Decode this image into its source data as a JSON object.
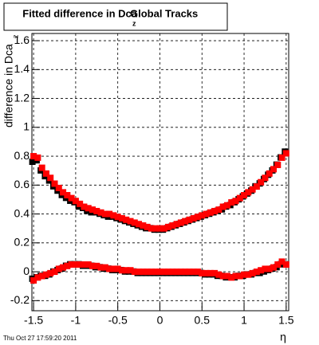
{
  "chart_data": {
    "type": "scatter",
    "title": "Fitted difference in Dca",
    "title_subscript": "z",
    "title_suffix": "Global Tracks",
    "y_label": "difference in Dca",
    "y_label_subscript": "z",
    "x_label": "η",
    "footer": "Thu Oct 27 17:59:20 2011",
    "x": [
      -1.5,
      -1.45,
      -1.4,
      -1.35,
      -1.3,
      -1.25,
      -1.2,
      -1.15,
      -1.1,
      -1.05,
      -1,
      -0.95,
      -0.9,
      -0.85,
      -0.8,
      -0.75,
      -0.7,
      -0.65,
      -0.6,
      -0.55,
      -0.5,
      -0.45,
      -0.4,
      -0.35,
      -0.3,
      -0.25,
      -0.2,
      -0.15,
      -0.1,
      -0.05,
      0,
      0.05,
      0.1,
      0.15,
      0.2,
      0.25,
      0.3,
      0.35,
      0.4,
      0.45,
      0.5,
      0.55,
      0.6,
      0.65,
      0.7,
      0.75,
      0.8,
      0.85,
      0.9,
      0.95,
      1,
      1.05,
      1.1,
      1.15,
      1.2,
      1.25,
      1.3,
      1.35,
      1.4,
      1.45,
      1.5
    ],
    "series": [
      {
        "color": "#000000",
        "values": [
          0.77,
          0.78,
          0.71,
          0.67,
          0.64,
          0.6,
          0.57,
          0.54,
          0.52,
          0.5,
          0.49,
          0.46,
          0.45,
          0.43,
          0.42,
          0.42,
          0.41,
          0.4,
          0.39,
          0.39,
          0.38,
          0.37,
          0.36,
          0.35,
          0.34,
          0.33,
          0.32,
          0.31,
          0.31,
          0.3,
          0.3,
          0.3,
          0.31,
          0.32,
          0.33,
          0.34,
          0.35,
          0.36,
          0.37,
          0.38,
          0.39,
          0.4,
          0.41,
          0.42,
          0.43,
          0.44,
          0.46,
          0.47,
          0.49,
          0.51,
          0.53,
          0.55,
          0.57,
          0.6,
          0.62,
          0.65,
          0.68,
          0.71,
          0.75,
          0.8,
          0.84
        ]
      },
      {
        "color": "#000000",
        "values": [
          -0.04,
          -0.03,
          -0.02,
          -0.02,
          -0.01,
          0.01,
          0.02,
          0.03,
          0.05,
          0.06,
          0.06,
          0.06,
          0.05,
          0.05,
          0.05,
          0.04,
          0.04,
          0.03,
          0.03,
          0.02,
          0.02,
          0.02,
          0.01,
          0.01,
          0.01,
          0,
          0,
          0,
          0,
          0,
          0,
          0,
          0,
          0,
          0,
          0,
          0,
          0,
          0,
          0,
          0,
          -0.01,
          -0.01,
          -0.01,
          -0.02,
          -0.02,
          -0.03,
          -0.03,
          -0.03,
          -0.02,
          -0.02,
          -0.01,
          -0.01,
          0,
          0,
          0.01,
          0.02,
          0.03,
          0.04,
          0.06,
          0.06
        ]
      },
      {
        "color": "#ff0000",
        "values": [
          0.8,
          0.79,
          0.72,
          0.68,
          0.65,
          0.61,
          0.58,
          0.55,
          0.53,
          0.51,
          0.49,
          0.47,
          0.45,
          0.44,
          0.43,
          0.42,
          0.41,
          0.4,
          0.4,
          0.39,
          0.38,
          0.37,
          0.36,
          0.35,
          0.34,
          0.33,
          0.32,
          0.31,
          0.3,
          0.3,
          0.3,
          0.3,
          0.31,
          0.32,
          0.33,
          0.34,
          0.35,
          0.36,
          0.37,
          0.38,
          0.39,
          0.4,
          0.41,
          0.42,
          0.43,
          0.45,
          0.46,
          0.48,
          0.49,
          0.51,
          0.53,
          0.55,
          0.57,
          0.59,
          0.62,
          0.65,
          0.68,
          0.71,
          0.74,
          0.79,
          0.82
        ]
      },
      {
        "color": "#ff0000",
        "values": [
          -0.06,
          -0.04,
          -0.03,
          -0.02,
          -0.01,
          0,
          0.02,
          0.03,
          0.04,
          0.05,
          0.05,
          0.05,
          0.05,
          0.05,
          0.04,
          0.04,
          0.03,
          0.03,
          0.02,
          0.02,
          0.02,
          0.01,
          0.01,
          0.01,
          0,
          0,
          0,
          0,
          0,
          0,
          0,
          0,
          0,
          0,
          0,
          0,
          0,
          0,
          0,
          0,
          -0.01,
          -0.01,
          -0.01,
          -0.01,
          -0.02,
          -0.03,
          -0.03,
          -0.04,
          -0.03,
          -0.03,
          -0.02,
          -0.02,
          -0.01,
          0,
          0.01,
          0.02,
          0.02,
          0.03,
          0.05,
          0.07,
          0.05
        ]
      }
    ],
    "xlim": [
      -1.52,
      1.53
    ],
    "ylim": [
      -0.27,
      1.65
    ],
    "xticks": [
      -1.5,
      -1,
      -0.5,
      0,
      0.5,
      1,
      1.5
    ],
    "yticks": [
      -0.2,
      0,
      0.2,
      0.4,
      0.6,
      0.8,
      1,
      1.2,
      1.4,
      1.6
    ],
    "grid": true
  }
}
